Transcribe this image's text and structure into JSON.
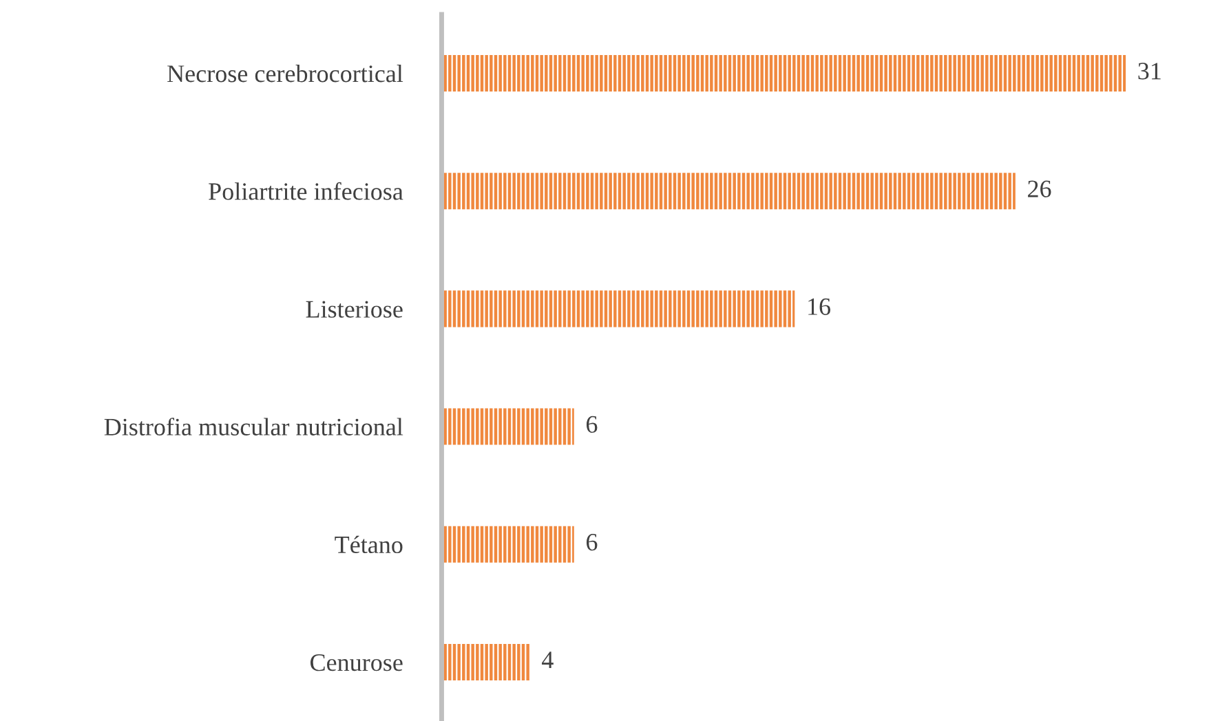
{
  "chart_data": {
    "type": "bar",
    "orientation": "horizontal",
    "categories": [
      "Necrose cerebrocortical",
      "Poliartrite infeciosa",
      "Listeriose",
      "Distrofia muscular nutricional",
      "Tétano",
      "Cenurose"
    ],
    "values": [
      31,
      26,
      16,
      6,
      6,
      4
    ],
    "color": "#f0883e",
    "data_labels": true,
    "grid": false,
    "legend": false
  }
}
